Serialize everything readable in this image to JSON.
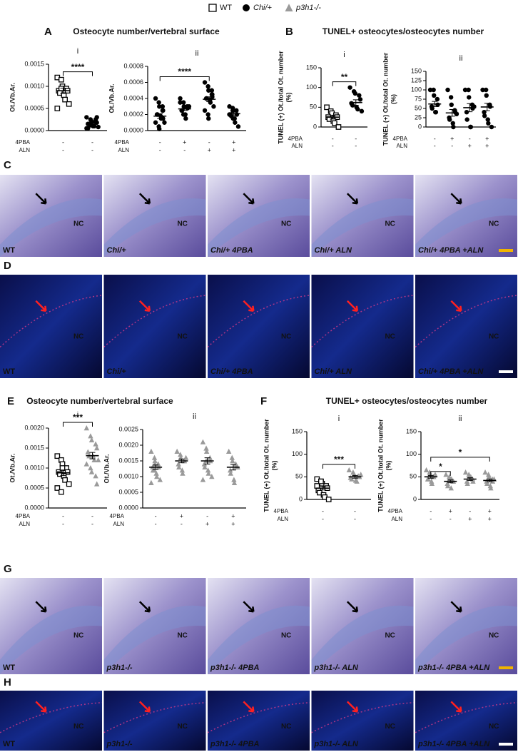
{
  "legend": [
    {
      "label": "WT",
      "marker": "square",
      "color": "#000000"
    },
    {
      "label": "Chi/+",
      "marker": "circle",
      "color": "#000000"
    },
    {
      "label": "p3h1-/-",
      "marker": "triangle",
      "color": "#9a9a9a"
    }
  ],
  "panels": [
    {
      "letter": "A",
      "title": "Osteocyte number/vertebral surface"
    },
    {
      "letter": "B",
      "title": "TUNEL+ osteocytes/osteocytes number"
    },
    {
      "letter": "E",
      "title": "Osteocyte number/vertebral surface"
    },
    {
      "letter": "F",
      "title": "TUNEL+ osteocytes/osteocytes number"
    }
  ],
  "chart_data": [
    {
      "type": "dot",
      "sublabel": "i",
      "ylabel": [
        "Ot./Vb.Ar."
      ],
      "ylim": [
        0,
        0.0015
      ],
      "yticks": [
        {
          "value": 0,
          "label": "0.0000"
        },
        {
          "value": 0.0005,
          "label": "0.0005"
        },
        {
          "value": 0.001,
          "label": "0.0010"
        },
        {
          "value": 0.0015,
          "label": "0.0015"
        }
      ],
      "groups": [
        {
          "marker": "square",
          "color": "#000000",
          "values": [
            0.0012,
            0.00115,
            0.001,
            0.00095,
            0.0009,
            0.0009,
            0.00085,
            0.0008,
            0.0007,
            0.0006,
            0.0005,
            0.00095
          ],
          "mean": 0.0009,
          "sem": 6e-05
        },
        {
          "marker": "circle",
          "color": "#000000",
          "values": [
            0.0003,
            0.00025,
            0.0002,
            0.0002,
            0.00018,
            0.00015,
            0.00015,
            0.0001,
            0.0001,
            8e-05,
            5e-05,
            0.00012,
            0.0002,
            0.00025,
            0.0003,
            5e-05
          ],
          "mean": 0.00017,
          "sem": 2e-05
        }
      ],
      "treatments": [
        {
          "label": "4PBA",
          "signs": [
            "-",
            "-"
          ]
        },
        {
          "label": "ALN",
          "signs": [
            "-",
            "-"
          ]
        }
      ],
      "brackets": [
        {
          "from": 0,
          "to": 1,
          "label": "****"
        }
      ]
    },
    {
      "type": "dot",
      "sublabel": "ii",
      "ylabel": [
        "Ot./Vb.Ar."
      ],
      "ylim": [
        0,
        0.0008
      ],
      "yticks": [
        {
          "value": 0,
          "label": "0.0000"
        },
        {
          "value": 0.0002,
          "label": "0.0002"
        },
        {
          "value": 0.0004,
          "label": "0.0004"
        },
        {
          "value": 0.0006,
          "label": "0.0006"
        },
        {
          "value": 0.0008,
          "label": "0.0008"
        }
      ],
      "groups": [
        {
          "marker": "circle",
          "color": "#000000",
          "values": [
            0.0004,
            0.00035,
            0.0003,
            0.00025,
            0.00025,
            0.0002,
            0.0002,
            0.00018,
            0.00015,
            0.0001,
            0.0001,
            5e-05,
            2e-05,
            0.0003,
            0.00015
          ],
          "mean": 0.00018,
          "sem": 3e-05
        },
        {
          "marker": "circle",
          "color": "#000000",
          "values": [
            0.0004,
            0.00035,
            0.0003,
            0.0003,
            0.00028,
            0.00025,
            0.00025,
            0.0002,
            0.00015,
            0.0003,
            0.00035,
            0.0002
          ],
          "mean": 0.00027,
          "sem": 2e-05
        },
        {
          "marker": "circle",
          "color": "#000000",
          "values": [
            0.0006,
            0.00055,
            0.0005,
            0.00045,
            0.00045,
            0.0004,
            0.0004,
            0.00038,
            0.00035,
            0.0003,
            0.00025,
            0.0002,
            0.00015,
            0.0005,
            0.00042
          ],
          "mean": 0.00039,
          "sem": 3e-05
        },
        {
          "marker": "circle",
          "color": "#000000",
          "values": [
            0.0003,
            0.00028,
            0.00025,
            0.00025,
            0.0002,
            0.0002,
            0.00018,
            0.00015,
            0.0001,
            5e-05,
            0.0002,
            0.00025,
            0.00015
          ],
          "mean": 0.00021,
          "sem": 2e-05
        }
      ],
      "treatments": [
        {
          "label": "4PBA",
          "signs": [
            "-",
            "+",
            "-",
            "+"
          ]
        },
        {
          "label": "ALN",
          "signs": [
            "-",
            "-",
            "+",
            "+"
          ]
        }
      ],
      "brackets": [
        {
          "from": 0,
          "to": 2,
          "label": "****"
        }
      ]
    },
    {
      "type": "dot",
      "sublabel": "i",
      "ylabel": [
        "TUNEL (+) Ot./total Ot. number",
        "(%)"
      ],
      "ylim": [
        0,
        150
      ],
      "yticks": [
        0,
        50,
        100,
        150
      ],
      "groups": [
        {
          "marker": "square",
          "color": "#000000",
          "values": [
            50,
            40,
            35,
            30,
            25,
            25,
            20,
            15,
            10,
            0
          ],
          "mean": 25,
          "sem": 5
        },
        {
          "marker": "circle",
          "color": "#000000",
          "values": [
            100,
            90,
            85,
            80,
            70,
            60,
            55,
            50,
            45,
            40
          ],
          "mean": 62,
          "sem": 7
        }
      ],
      "treatments": [
        {
          "label": "4PBA",
          "signs": [
            "-",
            "-"
          ]
        },
        {
          "label": "ALN",
          "signs": [
            "-",
            "-"
          ]
        }
      ],
      "brackets": [
        {
          "from": 0,
          "to": 1,
          "label": "**"
        }
      ]
    },
    {
      "type": "dot",
      "sublabel": "ii",
      "ylabel": [
        "TUNEL (+) Ot./total Ot. number",
        "(%)"
      ],
      "ylim": [
        0,
        150
      ],
      "yticks": [
        0,
        25,
        50,
        75,
        100,
        125,
        150
      ],
      "groups": [
        {
          "marker": "circle",
          "color": "#000000",
          "values": [
            100,
            100,
            85,
            75,
            60,
            55,
            50,
            40,
            40
          ],
          "mean": 62,
          "sem": 7
        },
        {
          "marker": "circle",
          "color": "#000000",
          "values": [
            100,
            80,
            60,
            45,
            40,
            25,
            20,
            10,
            0,
            35
          ],
          "mean": 38,
          "sem": 9
        },
        {
          "marker": "circle",
          "color": "#000000",
          "values": [
            100,
            100,
            80,
            60,
            50,
            40,
            20,
            0,
            0,
            55
          ],
          "mean": 52,
          "sem": 11
        },
        {
          "marker": "circle",
          "color": "#000000",
          "values": [
            100,
            100,
            85,
            60,
            55,
            40,
            30,
            20,
            10,
            0
          ],
          "mean": 54,
          "sem": 10
        }
      ],
      "treatments": [
        {
          "label": "4PBA",
          "signs": [
            "-",
            "+",
            "-",
            "+"
          ]
        },
        {
          "label": "ALN",
          "signs": [
            "-",
            "-",
            "+",
            "+"
          ]
        }
      ],
      "brackets": []
    },
    {
      "type": "dot",
      "sublabel": "i",
      "ylabel": [
        "Ot./Vb.Ar."
      ],
      "ylim": [
        0,
        0.002
      ],
      "yticks": [
        {
          "value": 0,
          "label": "0.0000"
        },
        {
          "value": 0.0005,
          "label": "0.0005"
        },
        {
          "value": 0.001,
          "label": "0.0010"
        },
        {
          "value": 0.0015,
          "label": "0.0015"
        },
        {
          "value": 0.002,
          "label": "0.0020"
        }
      ],
      "groups": [
        {
          "marker": "square",
          "color": "#000000",
          "values": [
            0.0013,
            0.0012,
            0.0011,
            0.001,
            0.0009,
            0.0009,
            0.00085,
            0.0008,
            0.0007,
            0.0006,
            0.0005,
            0.0004,
            0.001
          ],
          "mean": 0.00088,
          "sem": 7e-05
        },
        {
          "marker": "triangle",
          "color": "#9a9a9a",
          "values": [
            0.002,
            0.0018,
            0.0017,
            0.0016,
            0.0015,
            0.0014,
            0.0013,
            0.0013,
            0.0012,
            0.0012,
            0.0011,
            0.001,
            0.0009,
            0.0008,
            0.0006,
            0.0014
          ],
          "mean": 0.00131,
          "sem": 8e-05
        }
      ],
      "treatments": [
        {
          "label": "4PBA",
          "signs": [
            "-",
            "-"
          ]
        },
        {
          "label": "ALN",
          "signs": [
            "-",
            "-"
          ]
        }
      ],
      "brackets": [
        {
          "from": 0,
          "to": 1,
          "label": "***"
        }
      ]
    },
    {
      "type": "dot",
      "sublabel": "ii",
      "ylabel": [
        "Ot./Vb.Ar."
      ],
      "ylim": [
        0,
        0.0025
      ],
      "yticks": [
        {
          "value": 0,
          "label": "0.0000"
        },
        {
          "value": 0.0005,
          "label": "0.0005"
        },
        {
          "value": 0.001,
          "label": "0.0010"
        },
        {
          "value": 0.0015,
          "label": "0.0015"
        },
        {
          "value": 0.002,
          "label": "0.0020"
        },
        {
          "value": 0.0025,
          "label": "0.0025"
        }
      ],
      "groups": [
        {
          "marker": "triangle",
          "color": "#9a9a9a",
          "values": [
            0.0018,
            0.0016,
            0.0015,
            0.0014,
            0.0013,
            0.0013,
            0.0012,
            0.0011,
            0.001,
            0.0009,
            0.0008,
            0.0012,
            0.0014
          ],
          "mean": 0.0013,
          "sem": 7e-05
        },
        {
          "marker": "triangle",
          "color": "#9a9a9a",
          "values": [
            0.0018,
            0.0017,
            0.0016,
            0.0015,
            0.0015,
            0.0014,
            0.0013,
            0.0012,
            0.0011,
            0.0016
          ],
          "mean": 0.0015,
          "sem": 6e-05
        },
        {
          "marker": "triangle",
          "color": "#9a9a9a",
          "values": [
            0.0021,
            0.0019,
            0.0018,
            0.0016,
            0.0015,
            0.0014,
            0.0013,
            0.0012,
            0.0011,
            0.001,
            0.0009,
            0.0015
          ],
          "mean": 0.0015,
          "sem": 0.0001
        },
        {
          "marker": "triangle",
          "color": "#9a9a9a",
          "values": [
            0.0018,
            0.0016,
            0.0015,
            0.0014,
            0.0013,
            0.0012,
            0.0011,
            0.0009,
            0.0008,
            0.0013
          ],
          "mean": 0.0013,
          "sem": 9e-05
        }
      ],
      "treatments": [
        {
          "label": "4PBA",
          "signs": [
            "-",
            "+",
            "-",
            "+"
          ]
        },
        {
          "label": "ALN",
          "signs": [
            "-",
            "-",
            "+",
            "+"
          ]
        }
      ],
      "brackets": []
    },
    {
      "type": "dot",
      "sublabel": "i",
      "ylabel": [
        "TUNEL (+) Ot./total Ot. number",
        "(%)"
      ],
      "ylim": [
        0,
        150
      ],
      "yticks": [
        0,
        50,
        100,
        150
      ],
      "groups": [
        {
          "marker": "square",
          "color": "#000000",
          "values": [
            45,
            40,
            35,
            30,
            25,
            20,
            15,
            10,
            5,
            0,
            30,
            40
          ],
          "mean": 25,
          "sem": 4
        },
        {
          "marker": "triangle",
          "color": "#9a9a9a",
          "values": [
            65,
            60,
            55,
            52,
            50,
            48,
            45,
            42,
            40,
            55
          ],
          "mean": 50,
          "sem": 3
        }
      ],
      "treatments": [
        {
          "label": "4PBA",
          "signs": [
            "-",
            "-"
          ]
        },
        {
          "label": "ALN",
          "signs": [
            "-",
            "-"
          ]
        }
      ],
      "brackets": [
        {
          "from": 0,
          "to": 1,
          "label": "***"
        }
      ]
    },
    {
      "type": "dot",
      "sublabel": "ii",
      "ylabel": [
        "TUNEL (+) Ot./total Ot. number",
        "(%)"
      ],
      "ylim": [
        0,
        150
      ],
      "yticks": [
        0,
        50,
        100,
        150
      ],
      "groups": [
        {
          "marker": "triangle",
          "color": "#9a9a9a",
          "values": [
            65,
            60,
            55,
            50,
            50,
            45,
            45,
            40,
            35,
            55
          ],
          "mean": 50,
          "sem": 3
        },
        {
          "marker": "triangle",
          "color": "#9a9a9a",
          "values": [
            55,
            50,
            45,
            40,
            40,
            35,
            30,
            25,
            45
          ],
          "mean": 40,
          "sem": 3
        },
        {
          "marker": "triangle",
          "color": "#9a9a9a",
          "values": [
            60,
            55,
            50,
            45,
            40,
            40,
            35,
            50
          ],
          "mean": 45,
          "sem": 3
        },
        {
          "marker": "triangle",
          "color": "#9a9a9a",
          "values": [
            60,
            55,
            50,
            45,
            40,
            40,
            35,
            30,
            25,
            45
          ],
          "mean": 42,
          "sem": 3
        }
      ],
      "treatments": [
        {
          "label": "4PBA",
          "signs": [
            "-",
            "+",
            "-",
            "+"
          ]
        },
        {
          "label": "ALN",
          "signs": [
            "-",
            "-",
            "+",
            "+"
          ]
        }
      ],
      "brackets": [
        {
          "from": 0,
          "to": 1,
          "label": "*"
        },
        {
          "from": 0,
          "to": 3,
          "label": "*"
        }
      ]
    }
  ],
  "image_rows": [
    {
      "letter": "C",
      "style": "histology",
      "labels": [
        "WT",
        "Chi/+",
        "Chi/+ 4PBA",
        "Chi/+ ALN",
        "Chi/+ 4PBA +ALN"
      ],
      "tag": "NC"
    },
    {
      "letter": "D",
      "style": "fluorescence",
      "labels": [
        "WT",
        "Chi/+",
        "Chi/+ 4PBA",
        "Chi/+ ALN",
        "Chi/+ 4PBA +ALN"
      ],
      "tag": "NC"
    },
    {
      "letter": "G",
      "style": "histology",
      "labels": [
        "WT",
        "p3h1-/-",
        "p3h1-/- 4PBA",
        "p3h1-/- ALN",
        "p3h1-/- 4PBA +ALN"
      ],
      "tag": "NC"
    },
    {
      "letter": "H",
      "style": "fluorescence",
      "labels": [
        "WT",
        "p3h1-/-",
        "p3h1-/- 4PBA",
        "p3h1-/- ALN",
        "p3h1-/- 4PBA +ALN"
      ],
      "tag": "NC"
    }
  ]
}
